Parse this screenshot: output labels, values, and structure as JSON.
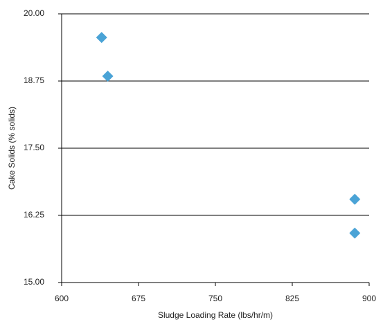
{
  "chart_data": {
    "type": "scatter",
    "x_label": "Sludge Loading Rate (lbs/hr/m)",
    "y_label": "Cake Solids (% solids)",
    "xlim": [
      600,
      900
    ],
    "xticks": [
      600,
      675,
      750,
      825,
      900
    ],
    "ylim": [
      15,
      20
    ],
    "yticks": [
      {
        "value": 15,
        "label": "15.00"
      },
      {
        "value": 16.25,
        "label": "16.25"
      },
      {
        "value": 17.5,
        "label": "17.50"
      },
      {
        "value": 18.75,
        "label": "18.75"
      },
      {
        "value": 20,
        "label": "20.00"
      }
    ],
    "grid": true,
    "series": [
      {
        "color": "#4aa3d6",
        "x": [
          639,
          645,
          886,
          886
        ],
        "values": [
          19.56,
          18.84,
          16.55,
          15.92
        ]
      }
    ]
  }
}
